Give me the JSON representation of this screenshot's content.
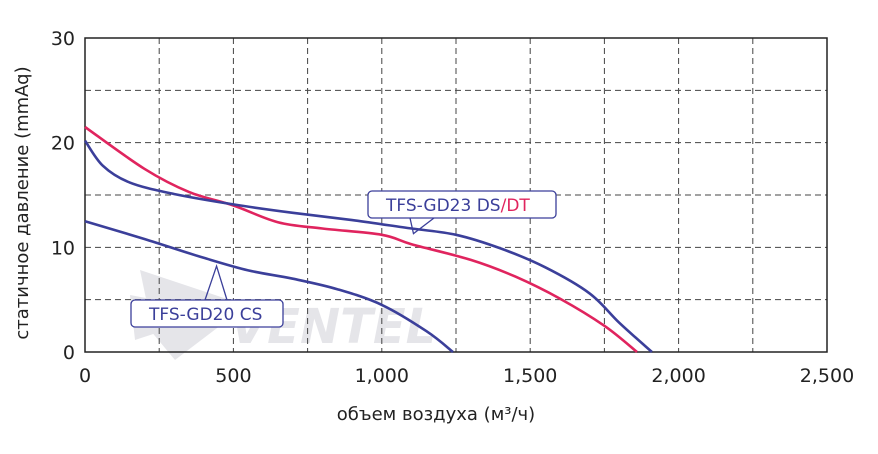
{
  "chart_data": {
    "type": "line",
    "xlabel": "объем воздуха (м³/ч)",
    "ylabel": "статичное давление (mmAq)",
    "xlim": [
      0,
      2500
    ],
    "ylim": [
      0,
      30
    ],
    "x_ticks": [
      "0",
      "500",
      "1,000",
      "1,500",
      "2,000",
      "2,500"
    ],
    "y_ticks": [
      "0",
      "10",
      "20",
      "30"
    ],
    "grid": "horizontal dashed every 5, vertical dashed every 250",
    "colors": {
      "ds": "#3b3f9a",
      "dt": "#e0245e",
      "cs": "#3b3f9a"
    },
    "series": [
      {
        "key": "ds",
        "points": [
          [
            0,
            20.2
          ],
          [
            60,
            17.8
          ],
          [
            150,
            16.2
          ],
          [
            300,
            15.1
          ],
          [
            500,
            14.1
          ],
          [
            700,
            13.3
          ],
          [
            900,
            12.6
          ],
          [
            1100,
            11.8
          ],
          [
            1250,
            11.2
          ],
          [
            1400,
            9.9
          ],
          [
            1550,
            8.1
          ],
          [
            1700,
            5.6
          ],
          [
            1800,
            2.8
          ],
          [
            1910,
            0
          ]
        ]
      },
      {
        "key": "dt",
        "points": [
          [
            0,
            21.5
          ],
          [
            200,
            17.5
          ],
          [
            350,
            15.3
          ],
          [
            500,
            14.0
          ],
          [
            650,
            12.4
          ],
          [
            800,
            11.8
          ],
          [
            1000,
            11.2
          ],
          [
            1100,
            10.3
          ],
          [
            1300,
            8.8
          ],
          [
            1450,
            7.2
          ],
          [
            1600,
            5.1
          ],
          [
            1750,
            2.5
          ],
          [
            1860,
            0
          ]
        ]
      },
      {
        "key": "cs",
        "points": [
          [
            0,
            12.5
          ],
          [
            200,
            10.8
          ],
          [
            400,
            9.0
          ],
          [
            550,
            7.8
          ],
          [
            700,
            7.0
          ],
          [
            850,
            6.0
          ],
          [
            1000,
            4.5
          ],
          [
            1150,
            2.0
          ],
          [
            1240,
            0
          ]
        ]
      }
    ],
    "annotations": {
      "ds_dt": {
        "part1": "TFS-GD23 DS",
        "sep": "/",
        "part2": "DT",
        "points_to": [
          1100,
          11.6
        ]
      },
      "cs": {
        "text": "TFS-GD20 CS",
        "points_to": [
          450,
          8.4
        ]
      }
    },
    "watermark": "VENTEL"
  }
}
